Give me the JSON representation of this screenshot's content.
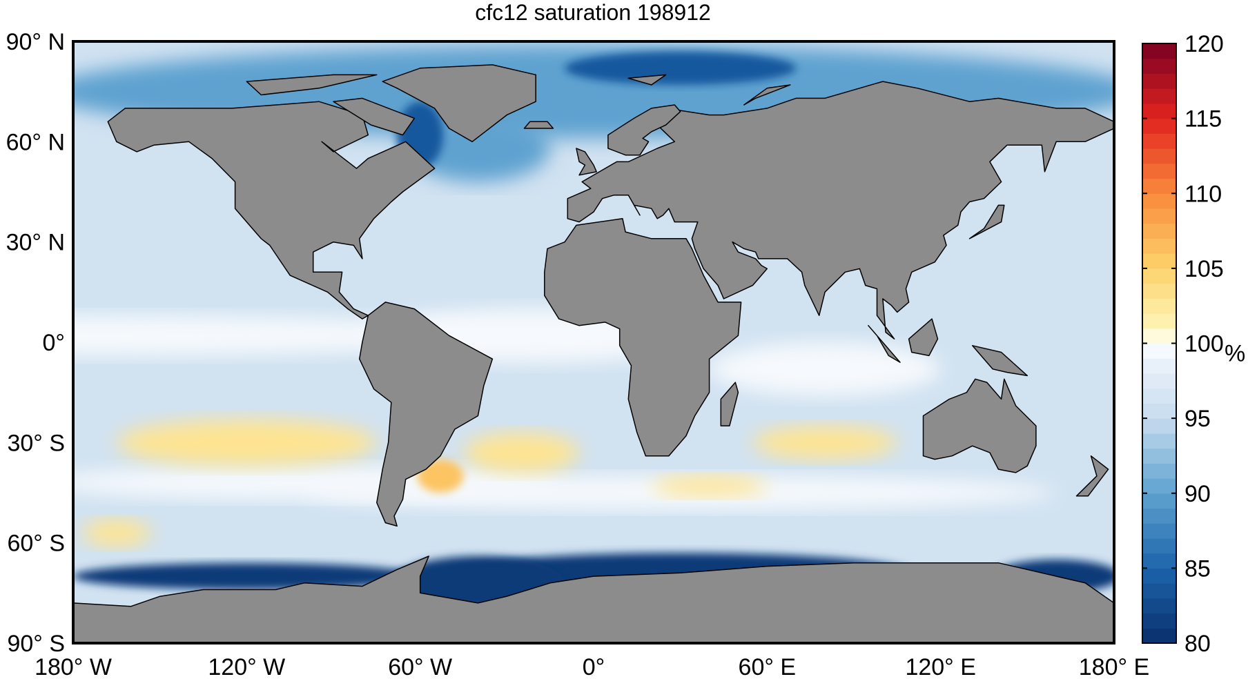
{
  "chart_data": {
    "type": "heatmap",
    "title": "cfc12 saturation 198912",
    "projection": "equirectangular",
    "xlim": [
      -180,
      180
    ],
    "ylim": [
      -90,
      90
    ],
    "lon_ticks": [
      -180,
      -120,
      -60,
      0,
      60,
      120,
      180
    ],
    "lon_tick_labels": [
      "180° W",
      "120° W",
      "60° W",
      "0°",
      "60° E",
      "120° E",
      "180° E"
    ],
    "lat_ticks": [
      90,
      60,
      30,
      0,
      -30,
      -60,
      -90
    ],
    "lat_tick_labels": [
      "90° N",
      "60° N",
      "30° N",
      "0°",
      "30° S",
      "60° S",
      "90° S"
    ],
    "colorbar": {
      "range": [
        80,
        120
      ],
      "levels": 40,
      "ticks": [
        80,
        85,
        90,
        95,
        100,
        105,
        110,
        115,
        120
      ],
      "tick_labels": [
        "80",
        "85",
        "90",
        "95",
        "100",
        "105",
        "110",
        "115",
        "120"
      ],
      "units": "%",
      "colormap_anchors": [
        {
          "v": 80,
          "c": "#0a2f6b"
        },
        {
          "v": 85,
          "c": "#1c64ab"
        },
        {
          "v": 90,
          "c": "#5fa2d0"
        },
        {
          "v": 95,
          "c": "#c7dcee"
        },
        {
          "v": 99,
          "c": "#edf3fa"
        },
        {
          "v": 100,
          "c": "#ffffff"
        },
        {
          "v": 101,
          "c": "#fef4b8"
        },
        {
          "v": 105,
          "c": "#fdd36c"
        },
        {
          "v": 110,
          "c": "#f88a3c"
        },
        {
          "v": 115,
          "c": "#e2231f"
        },
        {
          "v": 120,
          "c": "#7a0022"
        }
      ]
    },
    "land_color": "#8c8c8c",
    "field_features": [
      {
        "region": "background ocean",
        "value": 96
      },
      {
        "region": "equatorial band",
        "value": 99.5
      },
      {
        "region": "South Pacific subtropics",
        "value": 103
      },
      {
        "region": "South Atlantic subtropics",
        "value": 103
      },
      {
        "region": "Argentine shelf",
        "value": 106
      },
      {
        "region": "South Indian subtropics",
        "value": 103
      },
      {
        "region": "Southern Ocean 45S band",
        "value": 99.5
      },
      {
        "region": "Antarctic margin",
        "value": 81
      },
      {
        "region": "Arctic / North Atlantic",
        "value": 90
      },
      {
        "region": "Baltic / Labrador",
        "value": 84
      }
    ]
  }
}
